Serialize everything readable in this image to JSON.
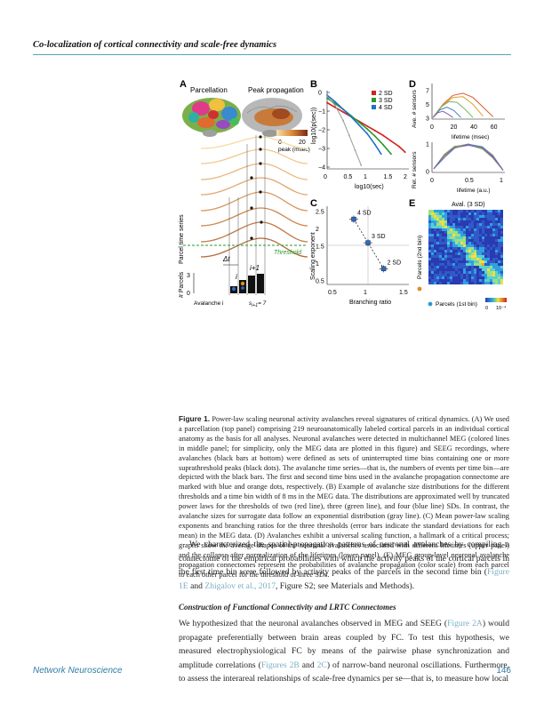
{
  "header": {
    "running_title": "Co-localization of cortical connectivity and scale-free dynamics"
  },
  "figure": {
    "panel_a": {
      "label": "A",
      "parcellation_title": "Parcellation",
      "peak_title": "Peak propagation",
      "colorbar_ticks": [
        "0",
        "20"
      ],
      "colorbar_label": "peak (msec)",
      "ylabel_top": "Parcel time series",
      "threshold_label": "Threshold",
      "dt_label": "Δt",
      "bin_i": "i",
      "bin_i1": "i+1",
      "ylabel_bottom": "# Parcels",
      "y_ticks": [
        "3",
        "0"
      ],
      "avalanche_label": "Avalanche i",
      "size_label": "s",
      "size_sub": "i+1",
      "size_value": "= 7"
    },
    "panel_b": {
      "label": "B",
      "ylabel": "log10(p(sec))",
      "xlabel": "log10(sec)",
      "x_ticks": [
        "0",
        "0.5",
        "1",
        "1.5",
        "2"
      ],
      "y_ticks": [
        "0",
        "−1",
        "−2",
        "−3",
        "−4"
      ],
      "legend": [
        {
          "name": "2 SD",
          "color": "#d22020"
        },
        {
          "name": "3 SD",
          "color": "#2a9a2a"
        },
        {
          "name": "4 SD",
          "color": "#2070c8"
        }
      ]
    },
    "panel_c": {
      "label": "C",
      "ylabel": "Scaling exponent",
      "xlabel": "Branching ratio",
      "x_ticks": [
        "0.5",
        "1",
        "1.5"
      ],
      "y_ticks": [
        "2.5",
        "2",
        "1.5",
        "1",
        "0.5"
      ],
      "point_labels": [
        "4 SD",
        "3 SD",
        "2 SD"
      ]
    },
    "panel_d": {
      "label": "D",
      "top_ylabel": "Ave. # sensors",
      "top_y_ticks": [
        "7",
        "5",
        "3"
      ],
      "top_x_ticks": [
        "0",
        "20",
        "40",
        "60"
      ],
      "top_xlabel": "lifetime (msec)",
      "bottom_ylabel": "Rel. # sensors",
      "bottom_y_ticks": [
        "1",
        "0"
      ],
      "bottom_x_ticks": [
        "0",
        "0.5",
        "1"
      ],
      "bottom_xlabel": "lifetime (a.u.)"
    },
    "panel_e": {
      "label": "E",
      "title": "Aval. (3 SD)",
      "ylabel": "Parcels (2nd bin)",
      "xlabel": "Parcels (1st bin)",
      "cbar_ticks": [
        "0",
        "10⁻⁴"
      ]
    }
  },
  "chart_data": [
    {
      "type": "line",
      "panel": "B",
      "xlabel": "log10(sec)",
      "ylabel": "log10(p(sec))",
      "xlim": [
        0,
        2
      ],
      "ylim": [
        -4,
        0
      ],
      "series": [
        {
          "name": "2 SD",
          "x": [
            0.0,
            0.2,
            0.4,
            0.6,
            0.8,
            1.0,
            1.2,
            1.4,
            1.6,
            1.8,
            1.95
          ],
          "y": [
            -0.55,
            -0.8,
            -1.05,
            -1.3,
            -1.55,
            -1.8,
            -2.05,
            -2.3,
            -2.6,
            -2.9,
            -3.2
          ]
        },
        {
          "name": "3 SD",
          "x": [
            0.0,
            0.2,
            0.4,
            0.6,
            0.8,
            1.0,
            1.2,
            1.4,
            1.6
          ],
          "y": [
            -0.3,
            -0.6,
            -0.9,
            -1.25,
            -1.6,
            -1.95,
            -2.35,
            -2.8,
            -3.3
          ]
        },
        {
          "name": "4 SD",
          "x": [
            0.0,
            0.2,
            0.4,
            0.6,
            0.8,
            1.0,
            1.2,
            1.35
          ],
          "y": [
            -0.15,
            -0.5,
            -0.9,
            -1.3,
            -1.75,
            -2.2,
            -2.8,
            -3.3
          ]
        },
        {
          "name": "",
          "x": [
            0.0,
            0.2,
            0.4,
            0.55,
            0.7,
            0.85
          ],
          "y": [
            -0.2,
            -0.7,
            -1.5,
            -2.3,
            -3.1,
            -3.9
          ]
        }
      ]
    },
    {
      "type": "scatter",
      "panel": "C",
      "xlabel": "Branching ratio",
      "ylabel": "Scaling exponent",
      "xlim": [
        0.5,
        1.5
      ],
      "ylim": [
        0.5,
        2.5
      ],
      "series": [
        {
          "name": "4 SD",
          "x": [
            0.8
          ],
          "y": [
            2.28
          ]
        },
        {
          "name": "3 SD",
          "x": [
            1.0
          ],
          "y": [
            1.6
          ]
        },
        {
          "name": "2 SD",
          "x": [
            1.22
          ],
          "y": [
            0.85
          ]
        }
      ]
    },
    {
      "type": "line",
      "panel": "D-top",
      "xlabel": "lifetime (msec)",
      "ylabel": "Ave. # sensors",
      "xlim": [
        0,
        70
      ],
      "ylim": [
        3,
        8
      ],
      "series": [
        {
          "name": "",
          "color": "#e05a2a",
          "x": [
            0,
            10,
            20,
            30,
            40,
            50,
            60
          ],
          "y": [
            3.1,
            5.0,
            6.3,
            6.6,
            6.0,
            4.6,
            3.2
          ]
        },
        {
          "name": "",
          "color": "#e0a030",
          "x": [
            0,
            10,
            20,
            30,
            40,
            50
          ],
          "y": [
            3.1,
            4.9,
            6.0,
            6.1,
            5.0,
            3.3
          ]
        },
        {
          "name": "",
          "color": "#7ab55a",
          "x": [
            0,
            8,
            16,
            24,
            32,
            40
          ],
          "y": [
            3.1,
            4.6,
            5.4,
            5.3,
            4.3,
            3.1
          ]
        },
        {
          "name": "",
          "color": "#4a80c0",
          "x": [
            0,
            7,
            14,
            21,
            28
          ],
          "y": [
            3.1,
            4.2,
            4.6,
            4.1,
            3.1
          ]
        },
        {
          "name": "",
          "color": "#8a5ab0",
          "x": [
            0,
            5,
            10,
            15,
            20
          ],
          "y": [
            3.1,
            3.8,
            4.0,
            3.6,
            3.1
          ]
        }
      ]
    },
    {
      "type": "line",
      "panel": "D-bottom",
      "xlabel": "lifetime (a.u.)",
      "ylabel": "Rel. # sensors",
      "xlim": [
        0,
        1
      ],
      "ylim": [
        0,
        1
      ],
      "series": [
        {
          "name": "",
          "color": "#e05a2a",
          "x": [
            0,
            0.15,
            0.3,
            0.5,
            0.7,
            0.85,
            1.0
          ],
          "y": [
            0.1,
            0.6,
            0.9,
            1.0,
            0.85,
            0.55,
            0.05
          ]
        },
        {
          "name": "",
          "color": "#e0a030",
          "x": [
            0,
            0.15,
            0.3,
            0.5,
            0.7,
            0.85,
            1.0
          ],
          "y": [
            0.1,
            0.55,
            0.88,
            0.98,
            0.88,
            0.6,
            0.05
          ]
        },
        {
          "name": "",
          "color": "#7ab55a",
          "x": [
            0,
            0.15,
            0.3,
            0.5,
            0.7,
            0.85,
            1.0
          ],
          "y": [
            0.1,
            0.62,
            0.92,
            0.97,
            0.82,
            0.5,
            0.05
          ]
        },
        {
          "name": "",
          "color": "#4a80c0",
          "x": [
            0,
            0.15,
            0.3,
            0.5,
            0.7,
            0.85,
            1.0
          ],
          "y": [
            0.1,
            0.5,
            0.85,
            0.99,
            0.9,
            0.58,
            0.05
          ]
        },
        {
          "name": "",
          "color": "#8a5ab0",
          "x": [
            0,
            0.15,
            0.3,
            0.5,
            0.7,
            0.85,
            1.0
          ],
          "y": [
            0.1,
            0.58,
            0.87,
            0.95,
            0.86,
            0.52,
            0.05
          ]
        }
      ]
    }
  ],
  "caption": {
    "label": "Figure 1.",
    "title": " Power-law scaling neuronal activity avalanches reveal signatures of critical dynamics.",
    "body": " (A) We used a parcellation (top panel) comprising 219 neuroanatomically labeled cortical parcels in an individual cortical anatomy as the basis for all analyses. Neuronal avalanches were detected in multichannel MEG (colored lines in middle panel; for simplicity, only the MEG data are plotted in this figure) and SEEG recordings, where avalanches (black bars at bottom) were defined as sets of uninterrupted time bins containing one or more suprathreshold peaks (black dots). The avalanche time series—that is, the numbers of events per time bin—are depicted with the black bars. The first and second time bins used in the avalanche propagation connectome are marked with blue and orange dots, respectively. (B) Example of avalanche size distributions for the different thresholds and a time bin width of 8 ms in the MEG data. The distributions are approximated well by truncated power laws for the thresholds of two (red line), three (green line), and four (blue line) SDs. In contrast, the avalanche sizes for surrogate data follow an exponential distribution (gray line). (C) Mean power-law scaling exponents and branching ratios for the three thresholds (error bars indicate the standard deviations for each mean) in the MEG data. (D) Avalanches exhibit a universal scaling function, a hallmark of a critical process; graphs show the average shapes of the neuronal avalanches associated with different lifetimes (upper panel) and the collapse after normalization of the lifetimes (lower panel). (E) MEG group-level neuronal avalanche propagation connectomes represent the probabilities of avalanche propagation (color scale) from each parcel to each other parcel for the threshold of three SDs."
  },
  "para1": {
    "a": "We characterized the spatial-propagation patterns of neuronal avalanches by compiling a connectome of the empirical probabilities with which the activity peaks of the cortical parcels in the first time bin were followed by activity peaks of the parcels in the second time bin (",
    "ref1": "Figure 1E",
    "b": " and ",
    "ref2": "Zhigalov et al., 2017",
    "c": ", Figure S2; see Materials and Methods)."
  },
  "section": {
    "title": "Construction of Functional Connectivity and LRTC Connectomes"
  },
  "para2": {
    "a": "We hypothesized that the neuronal avalanches observed in MEG and SEEG (",
    "ref1": "Figure 2A",
    "b": ") would propagate preferentially between brain areas coupled by FC. To test this hypothesis, we measured electrophysiological FC by means of the pairwise phase synchronization and amplitude correlations (",
    "ref2": "Figures 2B",
    "c": " and ",
    "ref3": "2C",
    "d": ") of narrow-band neuronal oscillations. Furthermore, to assess the interareal relationships of scale-free dynamics per se—that is, to measure how local"
  },
  "footer": {
    "journal": "Network Neuroscience",
    "page": "146"
  }
}
